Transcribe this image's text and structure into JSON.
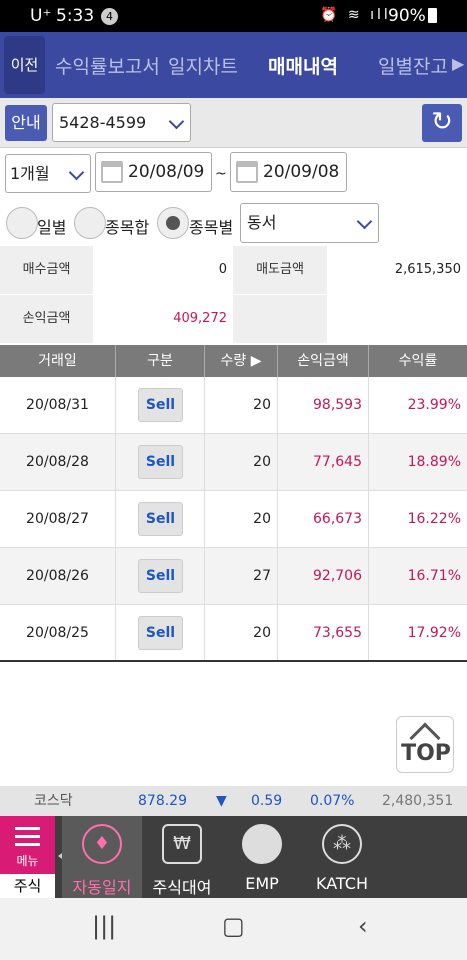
{
  "status_bar": {
    "carrier": "U⁺",
    "time": "5:33",
    "notification_count": "4",
    "battery": "90%"
  },
  "top_nav": {
    "prev_label": "이전",
    "tabs": [
      {
        "label": "수익률보고서"
      },
      {
        "label": "일지차트"
      },
      {
        "label": "매매내역"
      },
      {
        "label": "일별잔고"
      }
    ]
  },
  "controls": {
    "guide_label": "안내",
    "account": "5428-4599",
    "period": "1개월",
    "start_date": "20/08/09",
    "end_date": "20/09/08",
    "tilde": "~",
    "radio_daily": "일별",
    "radio_sum": "종목합",
    "radio_by_stock": "종목별",
    "stock_select": "동서"
  },
  "summary": {
    "buy_label": "매수금액",
    "buy_value": "0",
    "sell_label": "매도금액",
    "sell_value": "2,615,350",
    "pl_label": "손익금액",
    "pl_value": "409,272"
  },
  "table": {
    "headers": {
      "date": "거래일",
      "type": "구분",
      "qty": "수량 ▶",
      "pl": "손익금액",
      "rate": "수익률"
    },
    "rows": [
      {
        "date": "20/08/31",
        "type": "Sell",
        "qty": "20",
        "pl": "98,593",
        "rate": "23.99%"
      },
      {
        "date": "20/08/28",
        "type": "Sell",
        "qty": "20",
        "pl": "77,645",
        "rate": "18.89%"
      },
      {
        "date": "20/08/27",
        "type": "Sell",
        "qty": "20",
        "pl": "66,673",
        "rate": "16.22%"
      },
      {
        "date": "20/08/26",
        "type": "Sell",
        "qty": "27",
        "pl": "92,706",
        "rate": "16.71%"
      },
      {
        "date": "20/08/25",
        "type": "Sell",
        "qty": "20",
        "pl": "73,655",
        "rate": "17.92%"
      }
    ]
  },
  "top_button": "TOP",
  "ticker": {
    "index_name": "코스닥",
    "value": "878.29",
    "direction": "▼",
    "change": "0.59",
    "change_rate": "0.07%",
    "volume": "2,480,351"
  },
  "bottom_menu": {
    "menu_label": "메뉴",
    "stock_label": "주식",
    "items": [
      {
        "label": "자동일지",
        "icon": "journal-icon"
      },
      {
        "label": "주식대여",
        "icon": "won-tv-icon"
      },
      {
        "label": "EMP",
        "icon": "pie-chart-icon"
      },
      {
        "label": "KATCH",
        "icon": "katch-icon"
      }
    ]
  },
  "colors": {
    "nav_blue": "#3b4aa0",
    "profit_pink": "#c2185b",
    "sell_blue": "#1e56c2",
    "menu_pink": "#d81b75"
  }
}
